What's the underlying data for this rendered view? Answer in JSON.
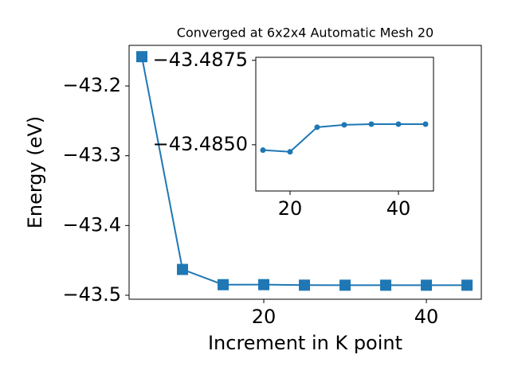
{
  "chart_data": [
    {
      "type": "line",
      "title": "Converged at 6x2x4 Automatic Mesh 20",
      "xlabel": "Increment in K point",
      "ylabel": "Energy (eV)",
      "x": [
        5,
        10,
        15,
        20,
        25,
        30,
        35,
        40,
        45
      ],
      "series": [
        {
          "color": "#1f77b4",
          "marker": "square",
          "values": [
            -43.158,
            -43.463,
            -43.48484,
            -43.48479,
            -43.48552,
            -43.48559,
            -43.48561,
            -43.48561,
            -43.48561
          ]
        }
      ],
      "xlim": [
        3.43,
        46.76
      ],
      "xticks": [
        20,
        40
      ],
      "ylim": [
        -43.5057,
        -43.1418
      ],
      "yticks": [
        {
          "value": -43.2,
          "label": "−43.2"
        },
        {
          "value": -43.3,
          "label": "−43.3"
        },
        {
          "value": -43.4,
          "label": "−43.4"
        },
        {
          "value": -43.5,
          "label": "−43.5"
        }
      ]
    },
    {
      "type": "line",
      "x": [
        15,
        20,
        25,
        30,
        35,
        40,
        45
      ],
      "series": [
        {
          "color": "#1f77b4",
          "marker": "circle",
          "values": [
            -43.48484,
            -43.48479,
            -43.48552,
            -43.48559,
            -43.48561,
            -43.48561,
            -43.48561
          ]
        }
      ],
      "xlim": [
        13.68,
        46.47
      ],
      "xticks": [
        20,
        40
      ],
      "ylim": [
        -43.48363,
        -43.48759
      ],
      "yticks": [
        {
          "value": -43.4875,
          "label": "−43.4875"
        },
        {
          "value": -43.485,
          "label": "−43.4850"
        }
      ]
    }
  ]
}
